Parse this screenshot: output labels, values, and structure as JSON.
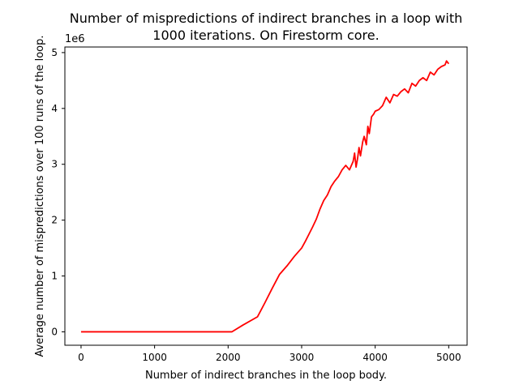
{
  "chart_data": {
    "type": "line",
    "title_line1": "Number of mispredictions of indirect branches in a loop with",
    "title_line2": "1000 iterations. On Firestorm core.",
    "xlabel": "Number of indirect branches in the loop body.",
    "ylabel": "Average number of mispredictions over 100 runs of the loop.",
    "y_offset_label": "1e6",
    "xlim": [
      -220,
      5250
    ],
    "ylim": [
      -0.24,
      5.1
    ],
    "xticks": [
      0,
      1000,
      2000,
      3000,
      4000,
      5000
    ],
    "xtick_labels": [
      "0",
      "1000",
      "2000",
      "3000",
      "4000",
      "5000"
    ],
    "yticks": [
      0,
      1,
      2,
      3,
      4,
      5
    ],
    "ytick_labels": [
      "0",
      "1",
      "2",
      "3",
      "4",
      "5"
    ],
    "grid": false,
    "series": [
      {
        "color": "#ff0000",
        "x": [
          0,
          500,
          1000,
          1500,
          2000,
          2050,
          2200,
          2400,
          2500,
          2600,
          2700,
          2800,
          2900,
          3000,
          3050,
          3100,
          3150,
          3200,
          3250,
          3300,
          3350,
          3400,
          3450,
          3500,
          3550,
          3600,
          3650,
          3700,
          3720,
          3740,
          3760,
          3780,
          3800,
          3830,
          3850,
          3880,
          3900,
          3920,
          3950,
          3980,
          4000,
          4050,
          4100,
          4150,
          4200,
          4250,
          4300,
          4350,
          4400,
          4450,
          4500,
          4550,
          4600,
          4650,
          4700,
          4750,
          4800,
          4850,
          4900,
          4950,
          4970,
          5000
        ],
        "y": [
          0,
          0,
          0,
          0,
          0,
          0,
          0.12,
          0.27,
          0.52,
          0.78,
          1.03,
          1.18,
          1.35,
          1.5,
          1.62,
          1.75,
          1.88,
          2.02,
          2.2,
          2.35,
          2.45,
          2.6,
          2.7,
          2.78,
          2.9,
          2.98,
          2.9,
          3.05,
          3.2,
          2.95,
          3.1,
          3.3,
          3.15,
          3.4,
          3.5,
          3.35,
          3.68,
          3.55,
          3.85,
          3.9,
          3.95,
          3.98,
          4.05,
          4.2,
          4.1,
          4.25,
          4.22,
          4.3,
          4.35,
          4.28,
          4.45,
          4.4,
          4.5,
          4.55,
          4.5,
          4.65,
          4.6,
          4.7,
          4.75,
          4.78,
          4.85,
          4.8
        ]
      }
    ]
  }
}
